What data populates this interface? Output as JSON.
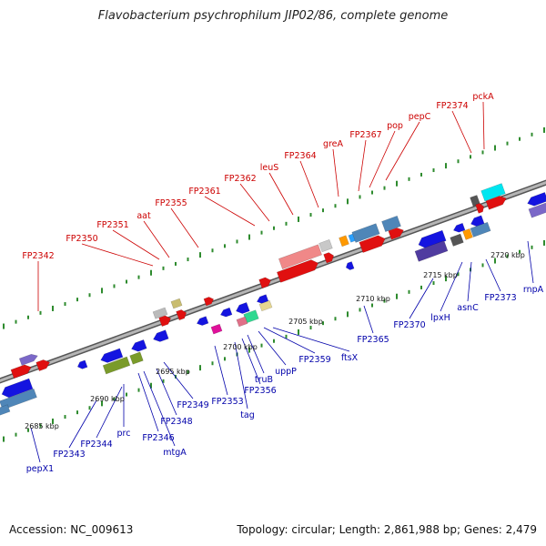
{
  "title": "Flavobacterium psychrophilum JIP02/86, complete genome",
  "footer": {
    "accession": "Accession: NC_009613",
    "summary": "Topology: circular; Length: 2,861,988 bp; Genes: 2,479"
  },
  "colors": {
    "forward_label": "#cc0000",
    "reverse_label": "#0000aa",
    "backbone": "#999999",
    "tick": "#2e8b2e"
  },
  "scale_labels": [
    "2685 kbp",
    "2690 kbp",
    "2695 kbp",
    "2700 kbp",
    "2705 kbp",
    "2710 kbp",
    "2715 kbp",
    "2720 kbp"
  ],
  "genes_forward": [
    "FP2342",
    "FP2350",
    "FP2351",
    "aat",
    "FP2355",
    "FP2361",
    "FP2362",
    "leuS",
    "FP2364",
    "greA",
    "FP2367",
    "pop",
    "pepC",
    "FP2374",
    "pckA"
  ],
  "genes_reverse": [
    "pepX1",
    "FP2343",
    "FP2344",
    "prc",
    "FP2346",
    "mtgA",
    "FP2348",
    "FP2349",
    "FP2353",
    "tag",
    "FP2356",
    "truB",
    "uppP",
    "FP2359",
    "ftsX",
    "FP2365",
    "FP2370",
    "lpxH",
    "asnC",
    "FP2373",
    "rnpA"
  ]
}
